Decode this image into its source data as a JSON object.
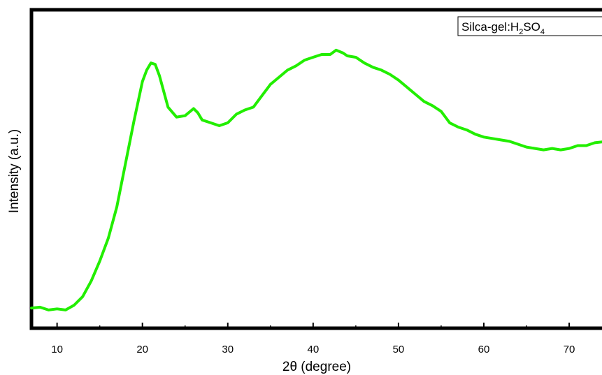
{
  "chart_data": {
    "type": "line",
    "xlabel": "2θ (degree)",
    "ylabel": "Intensity (a.u.)",
    "xlim": [
      7,
      74.5
    ],
    "ylim": [
      0,
      100
    ],
    "x_ticks": [
      10,
      20,
      30,
      40,
      50,
      60,
      70
    ],
    "y_ticks_labeled": false,
    "grid": false,
    "legend_position": "top-right",
    "legend": {
      "prefix": "Silca-gel:H",
      "sub1": "2",
      "mid": "SO",
      "sub2": "4"
    },
    "series": [
      {
        "name": "Silca-gel:H2SO4",
        "color": "#22ee00",
        "x": [
          7,
          8,
          9,
          10,
          11,
          12,
          13,
          14,
          15,
          16,
          17,
          18,
          19,
          20,
          20.5,
          21,
          21.5,
          22,
          23,
          24,
          25,
          26,
          26.5,
          27,
          28,
          29,
          30,
          31,
          32,
          33,
          34,
          35,
          36,
          37,
          38,
          39,
          40,
          41,
          42,
          42.7,
          43.5,
          44,
          45,
          46,
          47,
          48,
          49,
          50,
          51,
          52,
          53,
          54,
          55,
          56,
          57,
          58,
          59,
          60,
          61,
          62,
          63,
          64,
          65,
          66,
          67,
          68,
          69,
          70,
          71,
          72,
          73,
          74.5
        ],
        "y": [
          11.5,
          11.8,
          10.8,
          11.2,
          10.8,
          12.5,
          15.5,
          21,
          28,
          36,
          47,
          62,
          77,
          91,
          95,
          97.5,
          97,
          93,
          82,
          78.5,
          79,
          81.5,
          80,
          77.5,
          76.5,
          75.5,
          76.5,
          79.5,
          81,
          82,
          86,
          90,
          92.5,
          95,
          96.5,
          98.5,
          99.5,
          100.5,
          100.5,
          102,
          101,
          100,
          99.5,
          97.5,
          96,
          95,
          93.5,
          91.5,
          89,
          86.5,
          84,
          82.5,
          80.5,
          76.5,
          75,
          74,
          72.5,
          71.5,
          71,
          70.5,
          70,
          69,
          68,
          67.5,
          67,
          67.5,
          67,
          67.5,
          68.5,
          68.5,
          69.5,
          70
        ]
      }
    ]
  }
}
